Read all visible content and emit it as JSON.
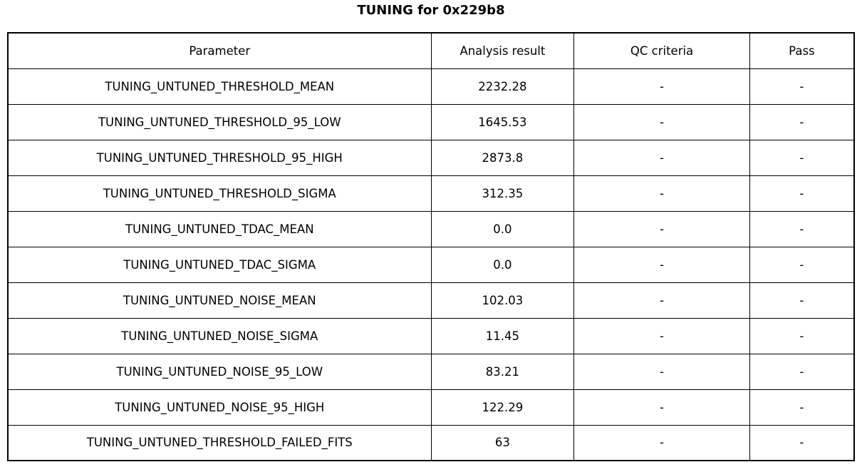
{
  "chart_data": {
    "type": "table",
    "title": "TUNING for 0x229b8",
    "columns": [
      "Parameter",
      "Analysis result",
      "QC criteria",
      "Pass"
    ],
    "rows": [
      [
        "TUNING_UNTUNED_THRESHOLD_MEAN",
        "2232.28",
        "-",
        "-"
      ],
      [
        "TUNING_UNTUNED_THRESHOLD_95_LOW",
        "1645.53",
        "-",
        "-"
      ],
      [
        "TUNING_UNTUNED_THRESHOLD_95_HIGH",
        "2873.8",
        "-",
        "-"
      ],
      [
        "TUNING_UNTUNED_THRESHOLD_SIGMA",
        "312.35",
        "-",
        "-"
      ],
      [
        "TUNING_UNTUNED_TDAC_MEAN",
        "0.0",
        "-",
        "-"
      ],
      [
        "TUNING_UNTUNED_TDAC_SIGMA",
        "0.0",
        "-",
        "-"
      ],
      [
        "TUNING_UNTUNED_NOISE_MEAN",
        "102.03",
        "-",
        "-"
      ],
      [
        "TUNING_UNTUNED_NOISE_SIGMA",
        "11.45",
        "-",
        "-"
      ],
      [
        "TUNING_UNTUNED_NOISE_95_LOW",
        "83.21",
        "-",
        "-"
      ],
      [
        "TUNING_UNTUNED_NOISE_95_HIGH",
        "122.29",
        "-",
        "-"
      ],
      [
        "TUNING_UNTUNED_THRESHOLD_FAILED_FITS",
        "63",
        "-",
        "-"
      ]
    ],
    "layout": {
      "title_position": "top-center",
      "grid": "on",
      "cell_alignment": "center"
    }
  },
  "colors": {
    "border": "#000000",
    "text": "#000000",
    "background": "#ffffff"
  }
}
